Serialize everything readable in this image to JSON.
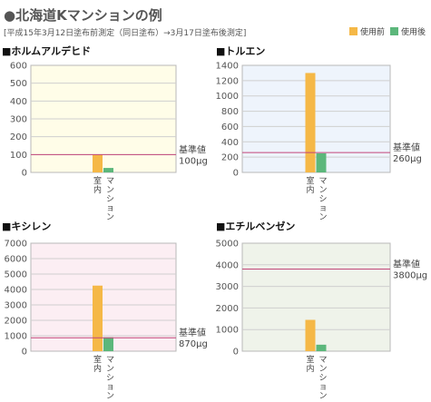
{
  "header": {
    "title": "●北海道Kマンションの例",
    "subtitle": "[平成15年3月12日塗布前測定（同日塗布）→3月17日塗布後測定]"
  },
  "legend": [
    {
      "label": "使用前",
      "color": "#F5B847"
    },
    {
      "label": "使用後",
      "color": "#5CB77B"
    }
  ],
  "chart_data": [
    {
      "type": "bar",
      "title": "■ホルムアルデヒド",
      "categories": [
        "室内",
        "マンション"
      ],
      "values": [
        100,
        25
      ],
      "yticks": [
        0,
        100,
        200,
        300,
        400,
        500,
        600
      ],
      "ylim": [
        0,
        600
      ],
      "reference": {
        "label": "基準値",
        "value_text": "100μg",
        "value": 100
      },
      "background": "#FFFDE8"
    },
    {
      "type": "bar",
      "title": "■トルエン",
      "categories": [
        "室内",
        "マンション"
      ],
      "values": [
        1300,
        250
      ],
      "yticks": [
        0,
        200,
        400,
        600,
        800,
        1000,
        1200,
        1400
      ],
      "ylim": [
        0,
        1400
      ],
      "reference": {
        "label": "基準値",
        "value_text": "260μg",
        "value": 260
      },
      "background": "#EEF4FC"
    },
    {
      "type": "bar",
      "title": "■キシレン",
      "categories": [
        "室内",
        "マンション"
      ],
      "values": [
        4250,
        900
      ],
      "yticks": [
        0,
        1000,
        2000,
        3000,
        4000,
        5000,
        6000,
        7000
      ],
      "ylim": [
        0,
        7000
      ],
      "reference": {
        "label": "基準値",
        "value_text": "870μg",
        "value": 870
      },
      "background": "#FCEEF3"
    },
    {
      "type": "bar",
      "title": "■エチルベンゼン",
      "categories": [
        "室内",
        "マンション"
      ],
      "values": [
        1450,
        300
      ],
      "yticks": [
        0,
        1000,
        2000,
        3000,
        4000,
        5000
      ],
      "ylim": [
        0,
        5000
      ],
      "reference": {
        "label": "基準値",
        "value_text": "3800μg",
        "value": 3800
      },
      "background": "#EFF3EA"
    }
  ]
}
